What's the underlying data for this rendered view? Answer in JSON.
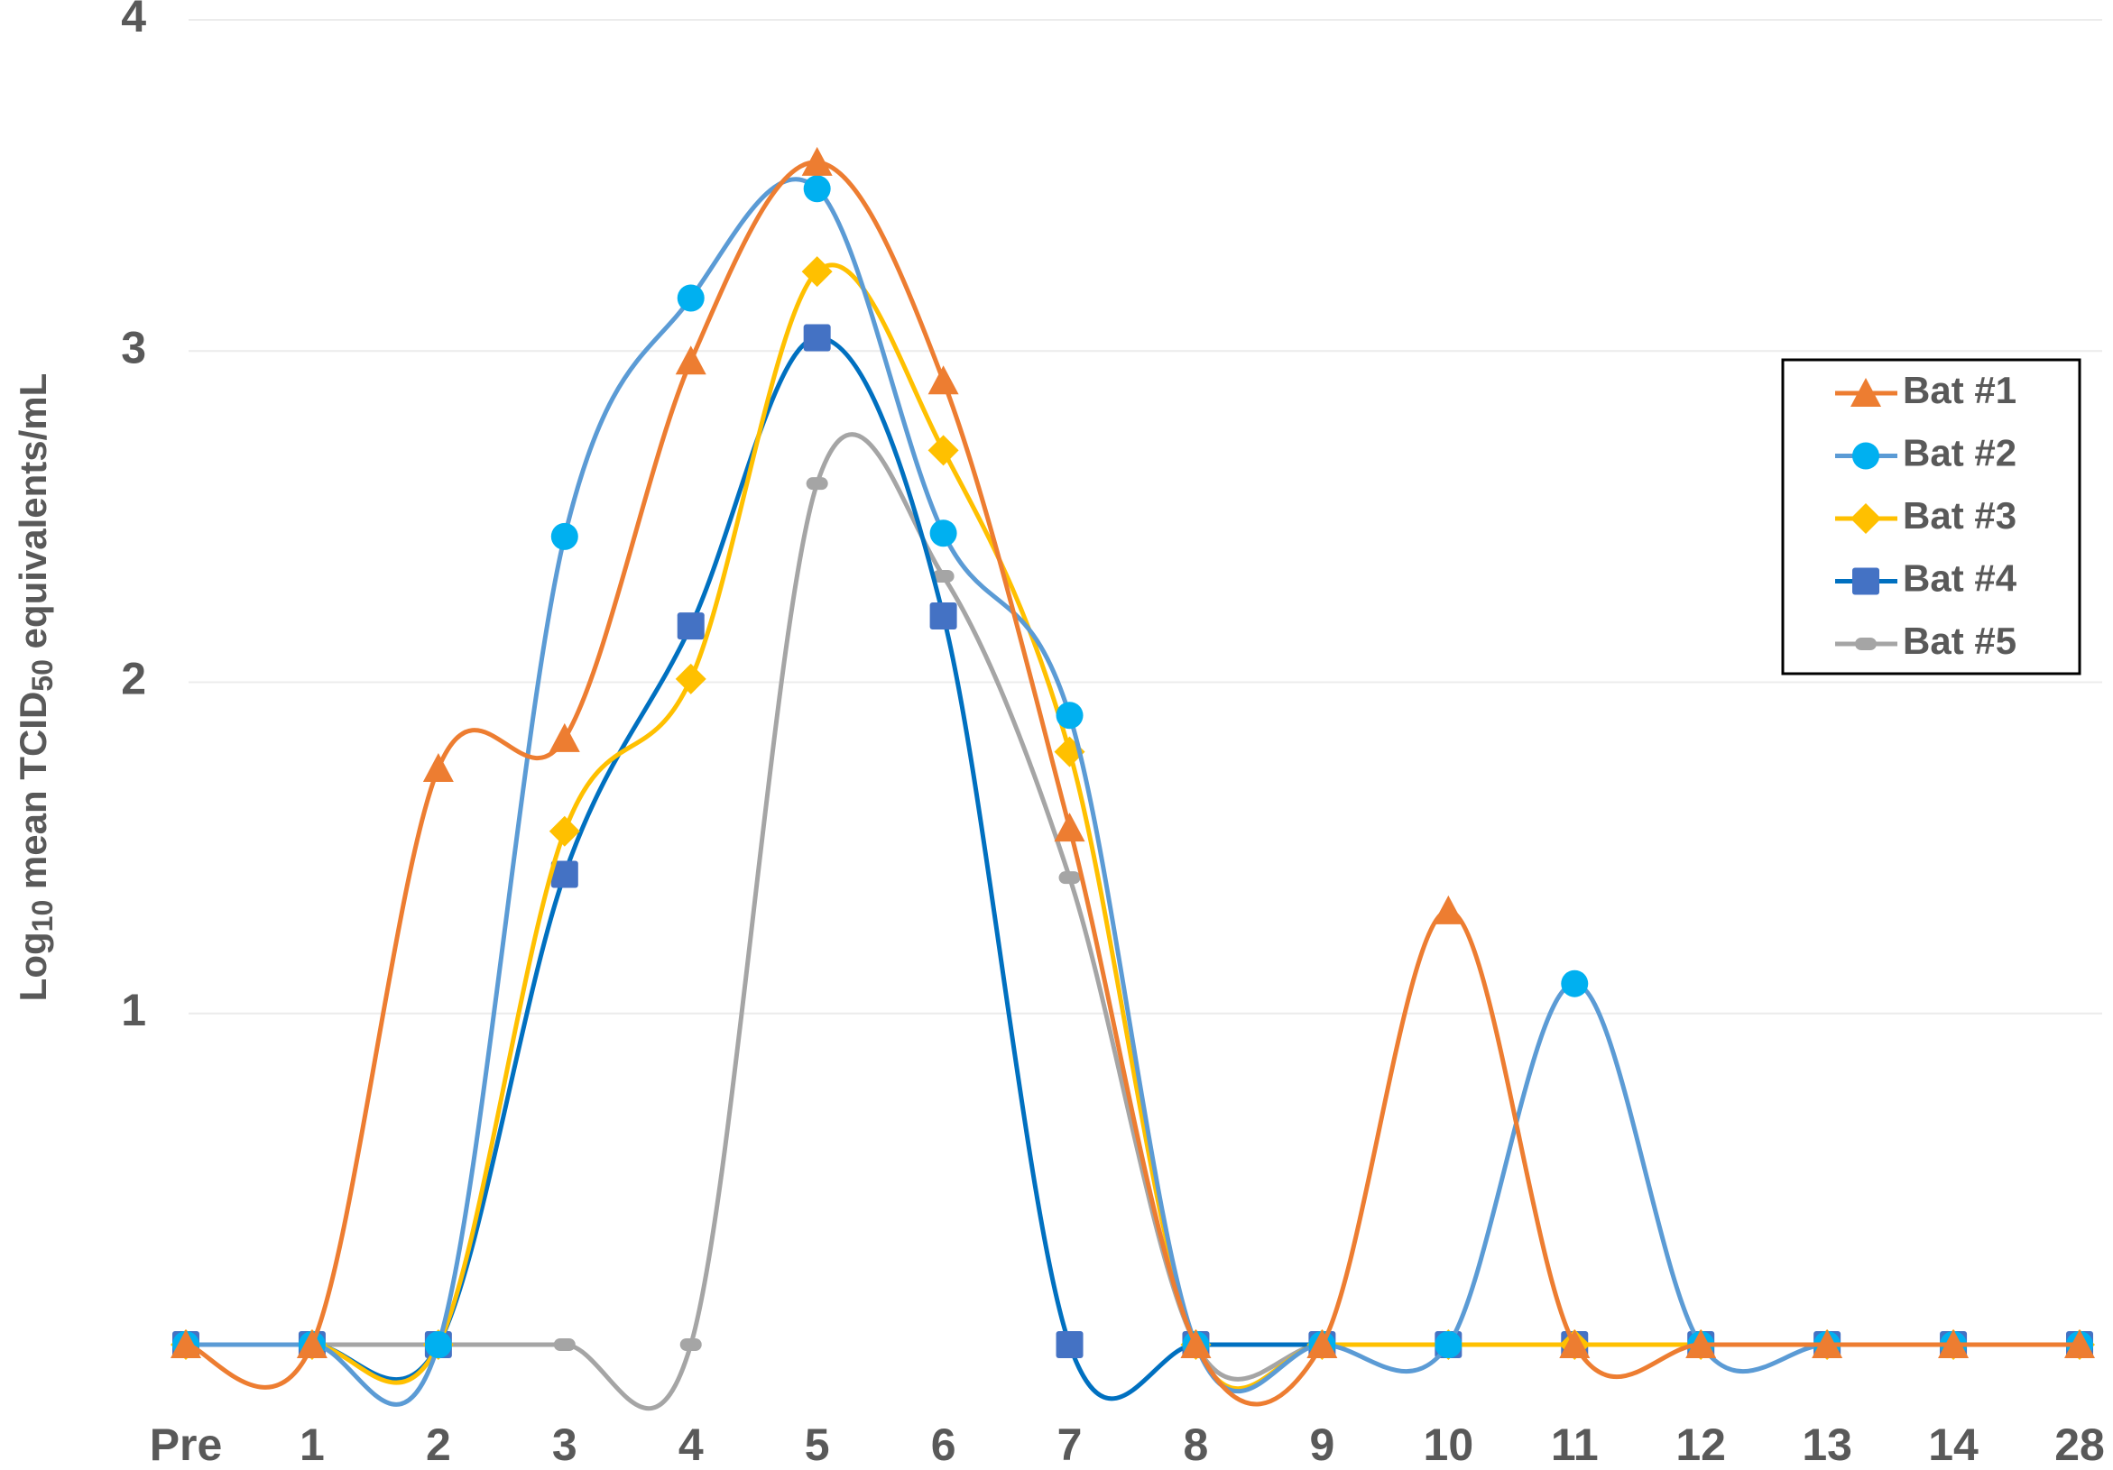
{
  "chart_data": {
    "type": "line",
    "y_label": [
      "Log",
      "10",
      " mean TCID",
      "50",
      " equivalents/mL"
    ],
    "categories": [
      "Pre",
      "1",
      "2",
      "3",
      "4",
      "5",
      "6",
      "7",
      "8",
      "9",
      "10",
      "11",
      "12",
      "13",
      "14",
      "28"
    ],
    "ylim": [
      0,
      4
    ],
    "yticks": [
      1,
      2,
      3,
      4
    ],
    "grid": true,
    "smooth": true,
    "series": [
      {
        "name": "Bat #1",
        "color": "#ED7D31",
        "marker_color": "#ED7D31",
        "marker": "triangle",
        "values": [
          0,
          0,
          1.74,
          1.83,
          2.97,
          3.57,
          2.91,
          1.56,
          0,
          0,
          1.31,
          0,
          0,
          0,
          0,
          0
        ]
      },
      {
        "name": "Bat #2",
        "color": "#5B9BD5",
        "marker_color": "#00B0F0",
        "marker": "circle",
        "values": [
          0,
          0,
          0,
          2.44,
          3.16,
          3.49,
          2.45,
          1.9,
          0,
          0,
          0,
          1.09,
          0,
          0,
          0,
          0
        ]
      },
      {
        "name": "Bat #3",
        "color": "#FFC000",
        "marker_color": "#FFC000",
        "marker": "diamond",
        "values": [
          0,
          0,
          0,
          1.55,
          2.01,
          3.24,
          2.7,
          1.79,
          0,
          0,
          0,
          0,
          0,
          0,
          0,
          0
        ]
      },
      {
        "name": "Bat #4",
        "color": "#0070C0",
        "marker_color": "#4472C4",
        "marker": "square",
        "values": [
          0,
          0,
          0,
          1.42,
          2.17,
          3.04,
          2.2,
          0,
          0,
          0,
          0,
          0,
          0,
          0,
          0,
          0
        ]
      },
      {
        "name": "Bat #5",
        "color": "#A5A5A5",
        "marker_color": "#A5A5A5",
        "marker": "dash",
        "values": [
          0,
          0,
          0,
          0,
          0,
          2.6,
          2.32,
          1.41,
          0,
          0,
          0,
          0,
          0,
          0,
          0,
          0
        ]
      }
    ]
  }
}
